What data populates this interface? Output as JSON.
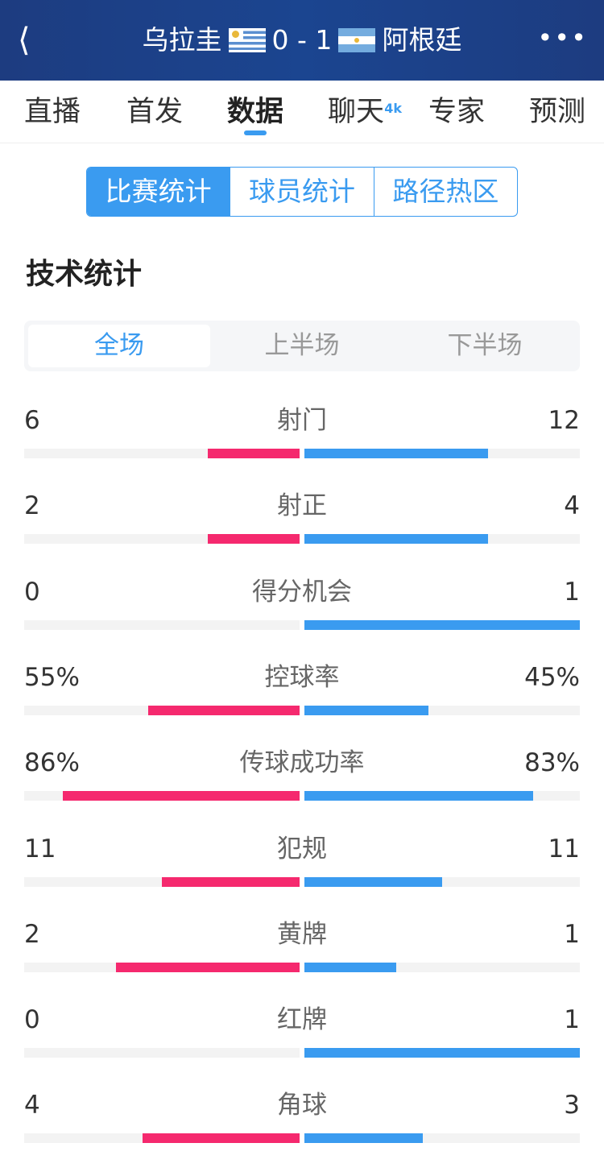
{
  "header": {
    "back_icon": "chevron-left",
    "home": "乌拉圭",
    "score": "0 - 1",
    "away": "阿根廷",
    "more_icon": "ellipsis"
  },
  "nav": {
    "items": [
      "直播",
      "首发",
      "数据",
      "聊天",
      "专家",
      "预测"
    ],
    "badge": "4k",
    "active": "数据"
  },
  "segment": [
    "比赛统计",
    "球员统计",
    "路径热区"
  ],
  "section_title": "技术统计",
  "periods": [
    "全场",
    "上半场",
    "下半场"
  ],
  "colors": {
    "home": "#f5296e",
    "away": "#3a9bf0",
    "accent": "#3a9bf0"
  },
  "stats": [
    {
      "label": "射门",
      "home": "6",
      "away": "12",
      "home_frac": 0.333,
      "away_frac": 0.667
    },
    {
      "label": "射正",
      "home": "2",
      "away": "4",
      "home_frac": 0.333,
      "away_frac": 0.667
    },
    {
      "label": "得分机会",
      "home": "0",
      "away": "1",
      "home_frac": 0,
      "away_frac": 1
    },
    {
      "label": "控球率",
      "home": "55%",
      "away": "45%",
      "home_frac": 0.55,
      "away_frac": 0.45
    },
    {
      "label": "传球成功率",
      "home": "86%",
      "away": "83%",
      "home_frac": 0.86,
      "away_frac": 0.83
    },
    {
      "label": "犯规",
      "home": "11",
      "away": "11",
      "home_frac": 0.5,
      "away_frac": 0.5
    },
    {
      "label": "黄牌",
      "home": "2",
      "away": "1",
      "home_frac": 0.667,
      "away_frac": 0.333
    },
    {
      "label": "红牌",
      "home": "0",
      "away": "1",
      "home_frac": 0,
      "away_frac": 1
    },
    {
      "label": "角球",
      "home": "4",
      "away": "3",
      "home_frac": 0.571,
      "away_frac": 0.429
    }
  ]
}
